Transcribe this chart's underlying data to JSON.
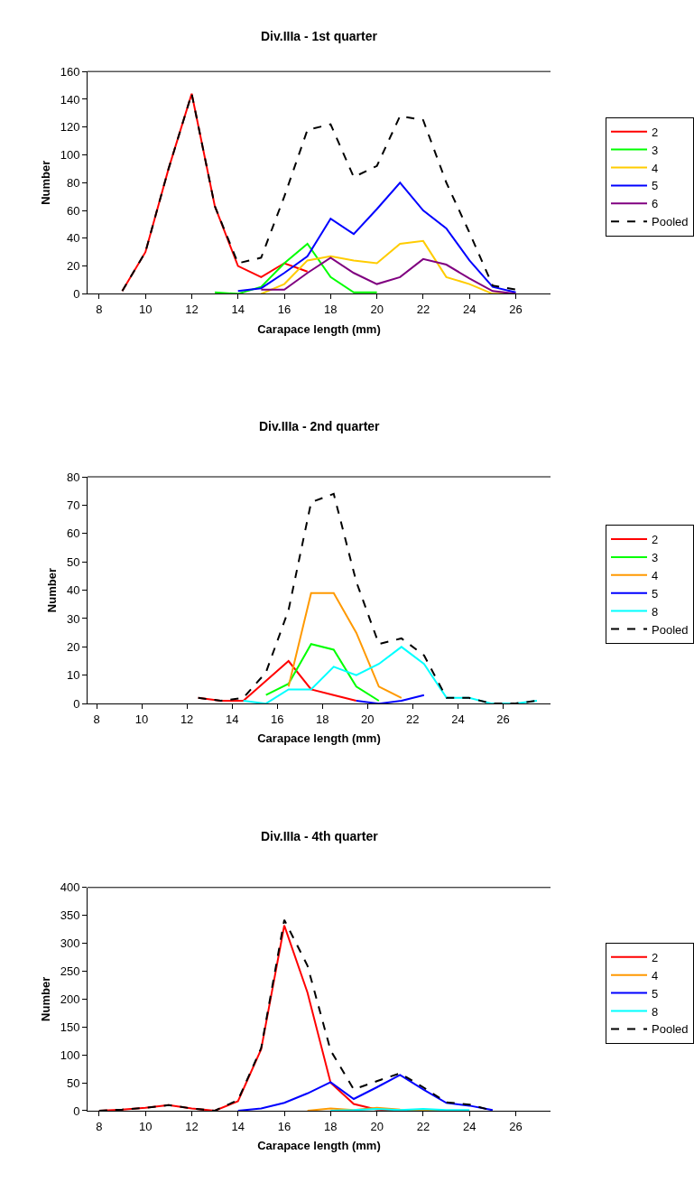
{
  "chart_data": [
    {
      "type": "line",
      "title": "Div.IIIa - 1st quarter",
      "xlabel": "Carapace length (mm)",
      "ylabel": "Number",
      "xlim": [
        7.5,
        27.5
      ],
      "xticks": [
        8,
        10,
        12,
        14,
        16,
        18,
        20,
        22,
        24,
        26
      ],
      "ylim": [
        0,
        160
      ],
      "yticks": [
        0,
        20,
        40,
        60,
        80,
        100,
        120,
        140,
        160
      ],
      "legend": "right",
      "line_style": "solid",
      "series": [
        {
          "name": "2",
          "color": "#ff0000",
          "x": [
            9,
            10,
            11,
            12,
            13,
            14,
            15,
            16,
            17
          ],
          "values": [
            2,
            30,
            90,
            144,
            63,
            20,
            12,
            22,
            16
          ]
        },
        {
          "name": "3",
          "color": "#00ff00",
          "x": [
            13,
            14,
            15,
            16,
            17,
            18,
            19,
            20
          ],
          "values": [
            1,
            0,
            5,
            22,
            36,
            12,
            1,
            1
          ]
        },
        {
          "name": "4",
          "color": "#ffcc00",
          "x": [
            15,
            16,
            17,
            18,
            19,
            20,
            21,
            22,
            23,
            24,
            25,
            26
          ],
          "values": [
            0,
            7,
            24,
            27,
            24,
            22,
            36,
            38,
            12,
            7,
            0,
            0
          ]
        },
        {
          "name": "5",
          "color": "#0000ff",
          "x": [
            14,
            15,
            16,
            17,
            18,
            19,
            20,
            21,
            22,
            23,
            24,
            25,
            26
          ],
          "values": [
            2,
            4,
            15,
            27,
            54,
            43,
            61,
            80,
            60,
            47,
            24,
            5,
            1
          ]
        },
        {
          "name": "6",
          "color": "#800080",
          "x": [
            15,
            16,
            17,
            18,
            19,
            20,
            21,
            22,
            23,
            24,
            25,
            26
          ],
          "values": [
            3,
            3,
            15,
            26,
            15,
            7,
            12,
            25,
            21,
            11,
            2,
            0
          ]
        },
        {
          "name": "Pooled",
          "color": "#000000",
          "line_style": "dashed",
          "x": [
            9,
            10,
            11,
            12,
            13,
            14,
            15,
            16,
            17,
            18,
            19,
            20,
            21,
            22,
            23,
            24,
            25,
            26
          ],
          "values": [
            2,
            30,
            90,
            144,
            63,
            22,
            26,
            70,
            118,
            122,
            84,
            92,
            128,
            125,
            80,
            44,
            6,
            3
          ]
        }
      ]
    },
    {
      "type": "line",
      "title": "Div.IIIa - 2nd quarter",
      "xlabel": "Carapace length (mm)",
      "ylabel": "Number",
      "xlim": [
        7.6,
        28.1
      ],
      "xticks": [
        8,
        10,
        12,
        14,
        16,
        18,
        20,
        22,
        24,
        26
      ],
      "ylim": [
        0,
        80
      ],
      "yticks": [
        0,
        10,
        20,
        30,
        40,
        50,
        60,
        70,
        80
      ],
      "legend": "right",
      "line_style": "solid",
      "series": [
        {
          "name": "2",
          "color": "#ff0000",
          "x": [
            12.5,
            13.5,
            14.5,
            15.5,
            16.5,
            17.5,
            18.5,
            19.5
          ],
          "values": [
            2,
            1,
            1,
            8,
            15,
            5,
            3,
            1
          ]
        },
        {
          "name": "3",
          "color": "#00ff00",
          "x": [
            15.5,
            16.5,
            17.5,
            18.5,
            19.5,
            20.5
          ],
          "values": [
            3,
            7,
            21,
            19,
            6,
            1
          ]
        },
        {
          "name": "4",
          "color": "#ff9900",
          "x": [
            16.5,
            17.5,
            18.5,
            19.5,
            20.5,
            21.5
          ],
          "values": [
            6,
            39,
            39,
            25,
            6,
            2
          ]
        },
        {
          "name": "5",
          "color": "#0000ff",
          "x": [
            19.5,
            20.5,
            21.5,
            22.5
          ],
          "values": [
            1,
            0,
            1,
            3
          ]
        },
        {
          "name": "8",
          "color": "#00ffff",
          "x": [
            14.5,
            15.5,
            16.5,
            17.5,
            18.5,
            19.5,
            20.5,
            21.5,
            22.5,
            23.5,
            24.5,
            25.5,
            26.5,
            27.5
          ],
          "values": [
            1,
            0,
            5,
            5,
            13,
            10,
            14,
            20,
            14,
            2,
            2,
            0,
            0,
            1
          ]
        },
        {
          "name": "Pooled",
          "color": "#000000",
          "line_style": "dashed",
          "x": [
            12.5,
            13.5,
            14.5,
            15.5,
            16.5,
            17.5,
            18.5,
            19.5,
            20.5,
            21.5,
            22.5,
            23.5,
            24.5,
            25.5,
            26.5,
            27.5
          ],
          "values": [
            2,
            1,
            2,
            11,
            33,
            71,
            74,
            43,
            21,
            23,
            17,
            2,
            2,
            0,
            0,
            1
          ]
        }
      ]
    },
    {
      "type": "line",
      "title": "Div.IIIa - 4th quarter",
      "xlabel": "Carapace length (mm)",
      "ylabel": "Number",
      "xlim": [
        7.5,
        27.5
      ],
      "xticks": [
        8,
        10,
        12,
        14,
        16,
        18,
        20,
        22,
        24,
        26
      ],
      "ylim": [
        0,
        400
      ],
      "yticks": [
        0,
        50,
        100,
        150,
        200,
        250,
        300,
        350,
        400
      ],
      "legend": "right",
      "line_style": "solid",
      "series": [
        {
          "name": "2",
          "color": "#ff0000",
          "x": [
            8,
            9,
            10,
            11,
            12,
            13,
            14,
            15,
            16,
            17,
            18,
            19,
            20,
            21
          ],
          "values": [
            0,
            2,
            5,
            10,
            4,
            0,
            17,
            110,
            332,
            212,
            50,
            12,
            2,
            0
          ]
        },
        {
          "name": "4",
          "color": "#ff9900",
          "x": [
            17,
            18,
            19,
            20,
            21,
            22,
            23
          ],
          "values": [
            0,
            4,
            1,
            5,
            2,
            1,
            0
          ]
        },
        {
          "name": "5",
          "color": "#0000ff",
          "x": [
            14,
            15,
            16,
            17,
            18,
            19,
            20,
            21,
            22,
            23,
            24,
            25
          ],
          "values": [
            0,
            4,
            14,
            31,
            51,
            21,
            42,
            64,
            38,
            14,
            9,
            1
          ]
        },
        {
          "name": "8",
          "color": "#00ffff",
          "x": [
            18,
            19,
            20,
            21,
            22,
            23,
            24
          ],
          "values": [
            0,
            1,
            3,
            1,
            3,
            1,
            1
          ]
        },
        {
          "name": "Pooled",
          "color": "#000000",
          "line_style": "dashed",
          "x": [
            8,
            9,
            10,
            11,
            12,
            13,
            14,
            15,
            16,
            17,
            18,
            19,
            20,
            21,
            22,
            23,
            24,
            25
          ],
          "values": [
            0,
            2,
            5,
            10,
            4,
            0,
            19,
            112,
            342,
            260,
            108,
            38,
            53,
            67,
            42,
            15,
            11,
            0
          ]
        }
      ]
    }
  ]
}
